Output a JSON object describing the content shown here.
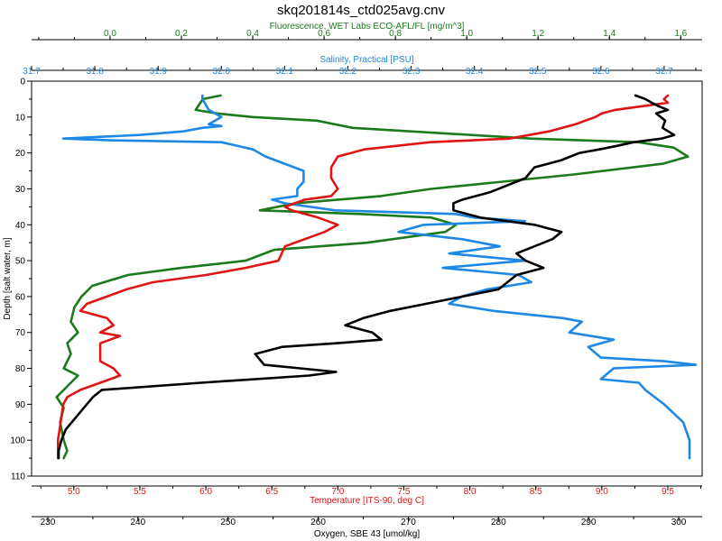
{
  "chart_data": {
    "type": "line",
    "title": "skq201814s_ctd025avg.cnv",
    "colors": {
      "fluorescence": "#1b7a1b",
      "salinity": "#1e88e5",
      "temperature": "#e01414",
      "oxygen": "#000000",
      "frame": "#000000"
    },
    "y_axis": {
      "label": "Depth [salt water, m]",
      "lim": [
        0,
        110
      ],
      "inverted": true,
      "ticks": [
        0,
        10,
        20,
        30,
        40,
        50,
        60,
        70,
        80,
        90,
        100,
        110
      ],
      "tick_labels": [
        "0",
        "10",
        "20",
        "30",
        "40",
        "50",
        "60",
        "70",
        "80",
        "90",
        "100",
        "110"
      ]
    },
    "x_axes": [
      {
        "id": "fluorescence",
        "label": "Fluorescence, WET Labs ECO-AFL/FL [mg/m^3]",
        "position": "top-outer",
        "lim": [
          -0.22,
          1.66
        ],
        "ticks": [
          0.0,
          0.2,
          0.4,
          0.6,
          0.8,
          1.0,
          1.2,
          1.4,
          1.6
        ],
        "tick_labels": [
          "0.0",
          "0.2",
          "0.4",
          "0.6",
          "0.8",
          "1.0",
          "1.2",
          "1.4",
          "1.6"
        ]
      },
      {
        "id": "salinity",
        "label": "Salinity, Practical [PSU]",
        "position": "top-inner",
        "lim": [
          31.7,
          32.76
        ],
        "ticks": [
          31.7,
          31.8,
          31.9,
          32.0,
          32.1,
          32.2,
          32.3,
          32.4,
          32.5,
          32.6,
          32.7
        ],
        "tick_labels": [
          "31.7",
          "31.8",
          "31.9",
          "32.0",
          "32.1",
          "32.2",
          "32.3",
          "32.4",
          "32.5",
          "32.6",
          "32.7"
        ]
      },
      {
        "id": "temperature",
        "label": "Temperature [ITS-90, deg C]",
        "position": "bottom-inner",
        "lim": [
          4.68,
          9.76
        ],
        "ticks": [
          5.0,
          5.5,
          6.0,
          6.5,
          7.0,
          7.5,
          8.0,
          8.5,
          9.0,
          9.5
        ],
        "tick_labels": [
          "5.0",
          "5.5",
          "6.0",
          "6.5",
          "7.0",
          "7.5",
          "8.0",
          "8.5",
          "9.0",
          "9.5"
        ]
      },
      {
        "id": "oxygen",
        "label": "Oxygen, SBE 43 [umol/kg]",
        "position": "bottom-outer",
        "lim": [
          228.2,
          302.6
        ],
        "ticks": [
          230,
          240,
          250,
          260,
          270,
          280,
          290,
          300
        ],
        "tick_labels": [
          "230",
          "240",
          "250",
          "260",
          "270",
          "280",
          "290",
          "300"
        ]
      }
    ],
    "series": [
      {
        "name": "Fluorescence",
        "axis": "fluorescence",
        "points": [
          [
            0.31,
            4
          ],
          [
            0.26,
            5
          ],
          [
            0.24,
            8
          ],
          [
            0.3,
            9
          ],
          [
            0.4,
            10
          ],
          [
            0.58,
            11
          ],
          [
            0.68,
            13
          ],
          [
            1.18,
            16
          ],
          [
            1.48,
            17
          ],
          [
            1.58,
            18.5
          ],
          [
            1.62,
            21
          ],
          [
            1.55,
            23
          ],
          [
            1.3,
            26
          ],
          [
            1.1,
            28
          ],
          [
            0.9,
            30
          ],
          [
            0.76,
            32
          ],
          [
            0.52,
            34
          ],
          [
            0.42,
            36
          ],
          [
            0.7,
            37
          ],
          [
            0.9,
            38
          ],
          [
            0.97,
            40
          ],
          [
            0.94,
            42
          ],
          [
            0.72,
            45
          ],
          [
            0.46,
            47
          ],
          [
            0.38,
            50
          ],
          [
            0.2,
            52
          ],
          [
            0.05,
            54
          ],
          [
            -0.05,
            57
          ],
          [
            -0.08,
            60
          ],
          [
            -0.1,
            63
          ],
          [
            -0.11,
            67
          ],
          [
            -0.09,
            70
          ],
          [
            -0.12,
            73
          ],
          [
            -0.11,
            76
          ],
          [
            -0.13,
            80
          ],
          [
            -0.09,
            82
          ],
          [
            -0.12,
            85
          ],
          [
            -0.15,
            88
          ],
          [
            -0.13,
            91
          ],
          [
            -0.14,
            95
          ],
          [
            -0.13,
            100
          ],
          [
            -0.12,
            103
          ],
          [
            -0.13,
            105
          ]
        ]
      },
      {
        "name": "Salinity",
        "axis": "salinity",
        "points": [
          [
            31.97,
            4
          ],
          [
            31.97,
            5
          ],
          [
            31.98,
            8
          ],
          [
            31.99,
            9
          ],
          [
            32.0,
            10
          ],
          [
            31.99,
            11
          ],
          [
            31.98,
            12
          ],
          [
            32.0,
            12.5
          ],
          [
            31.97,
            13
          ],
          [
            31.94,
            14
          ],
          [
            31.87,
            15
          ],
          [
            31.75,
            16
          ],
          [
            31.83,
            16.5
          ],
          [
            32.0,
            17
          ],
          [
            32.05,
            19
          ],
          [
            32.07,
            21
          ],
          [
            32.1,
            23
          ],
          [
            32.13,
            25
          ],
          [
            32.13,
            28
          ],
          [
            32.12,
            30
          ],
          [
            32.12,
            32
          ],
          [
            32.08,
            33
          ],
          [
            32.1,
            34
          ],
          [
            32.18,
            36
          ],
          [
            32.37,
            37
          ],
          [
            32.4,
            38
          ],
          [
            32.48,
            39
          ],
          [
            32.32,
            40
          ],
          [
            32.28,
            42
          ],
          [
            32.38,
            44
          ],
          [
            32.44,
            46
          ],
          [
            32.36,
            48
          ],
          [
            32.48,
            50
          ],
          [
            32.35,
            52
          ],
          [
            32.47,
            54
          ],
          [
            32.49,
            56
          ],
          [
            32.42,
            58
          ],
          [
            32.38,
            60
          ],
          [
            32.36,
            62
          ],
          [
            32.43,
            64
          ],
          [
            32.54,
            66
          ],
          [
            32.57,
            67
          ],
          [
            32.55,
            70
          ],
          [
            32.62,
            72
          ],
          [
            32.58,
            74
          ],
          [
            32.6,
            77
          ],
          [
            32.7,
            78
          ],
          [
            32.75,
            79
          ],
          [
            32.62,
            80
          ],
          [
            32.6,
            83
          ],
          [
            32.66,
            84
          ],
          [
            32.67,
            86
          ],
          [
            32.7,
            90
          ],
          [
            32.73,
            95
          ],
          [
            32.74,
            100
          ],
          [
            32.74,
            105
          ]
        ]
      },
      {
        "name": "Temperature",
        "axis": "temperature",
        "points": [
          [
            9.5,
            4
          ],
          [
            9.47,
            5
          ],
          [
            9.5,
            6
          ],
          [
            9.3,
            7
          ],
          [
            9.1,
            8
          ],
          [
            9.0,
            9
          ],
          [
            8.95,
            10
          ],
          [
            8.8,
            12
          ],
          [
            8.6,
            14
          ],
          [
            8.3,
            16
          ],
          [
            7.7,
            17
          ],
          [
            7.2,
            19
          ],
          [
            7.0,
            21
          ],
          [
            6.95,
            24
          ],
          [
            6.95,
            27
          ],
          [
            7.0,
            30
          ],
          [
            6.95,
            32
          ],
          [
            6.75,
            33
          ],
          [
            6.6,
            35
          ],
          [
            6.65,
            36
          ],
          [
            6.85,
            38
          ],
          [
            7.0,
            40
          ],
          [
            6.9,
            42
          ],
          [
            6.75,
            44
          ],
          [
            6.6,
            46
          ],
          [
            6.55,
            50
          ],
          [
            6.3,
            52
          ],
          [
            6.0,
            54
          ],
          [
            5.6,
            56
          ],
          [
            5.4,
            58
          ],
          [
            5.25,
            60
          ],
          [
            5.1,
            62
          ],
          [
            5.05,
            64
          ],
          [
            5.25,
            66
          ],
          [
            5.3,
            68
          ],
          [
            5.2,
            70
          ],
          [
            5.35,
            71
          ],
          [
            5.2,
            73
          ],
          [
            5.2,
            75
          ],
          [
            5.2,
            78
          ],
          [
            5.3,
            80
          ],
          [
            5.35,
            82
          ],
          [
            5.2,
            84
          ],
          [
            5.05,
            86
          ],
          [
            4.95,
            88
          ],
          [
            4.92,
            90
          ],
          [
            4.9,
            95
          ],
          [
            4.88,
            100
          ],
          [
            4.88,
            105
          ]
        ]
      },
      {
        "name": "Oxygen",
        "axis": "oxygen",
        "points": [
          [
            295.2,
            4
          ],
          [
            296.3,
            5
          ],
          [
            297.0,
            6
          ],
          [
            297.8,
            7
          ],
          [
            298.8,
            8
          ],
          [
            297.5,
            9
          ],
          [
            298.5,
            11
          ],
          [
            298.2,
            13
          ],
          [
            299.5,
            15
          ],
          [
            298.1,
            16
          ],
          [
            295.0,
            17
          ],
          [
            293.2,
            18
          ],
          [
            291.2,
            19
          ],
          [
            289.0,
            20
          ],
          [
            287.0,
            22
          ],
          [
            284.0,
            24
          ],
          [
            283.0,
            27
          ],
          [
            281.0,
            29
          ],
          [
            279.0,
            31
          ],
          [
            276.0,
            33
          ],
          [
            275.0,
            34
          ],
          [
            275.0,
            36
          ],
          [
            278.0,
            38
          ],
          [
            281.0,
            39
          ],
          [
            284.0,
            40
          ],
          [
            287.0,
            42
          ],
          [
            286.0,
            44
          ],
          [
            284.0,
            46
          ],
          [
            282.0,
            48
          ],
          [
            283.0,
            50
          ],
          [
            285.0,
            52
          ],
          [
            282.0,
            54
          ],
          [
            281.0,
            56
          ],
          [
            280.0,
            58
          ],
          [
            276.0,
            60
          ],
          [
            272.0,
            62
          ],
          [
            268.0,
            64
          ],
          [
            265.0,
            66
          ],
          [
            263.0,
            68
          ],
          [
            266.0,
            70
          ],
          [
            267.0,
            72
          ],
          [
            262.0,
            73
          ],
          [
            256.0,
            74
          ],
          [
            253.0,
            76
          ],
          [
            254.0,
            79
          ],
          [
            258.0,
            80
          ],
          [
            262.0,
            81
          ],
          [
            259.0,
            82
          ],
          [
            247.0,
            84
          ],
          [
            236.0,
            86
          ],
          [
            235.0,
            88
          ],
          [
            234.0,
            91
          ],
          [
            233.0,
            94
          ],
          [
            232.0,
            97
          ],
          [
            231.5,
            100
          ],
          [
            231.2,
            103
          ],
          [
            231.2,
            105
          ]
        ]
      }
    ]
  }
}
